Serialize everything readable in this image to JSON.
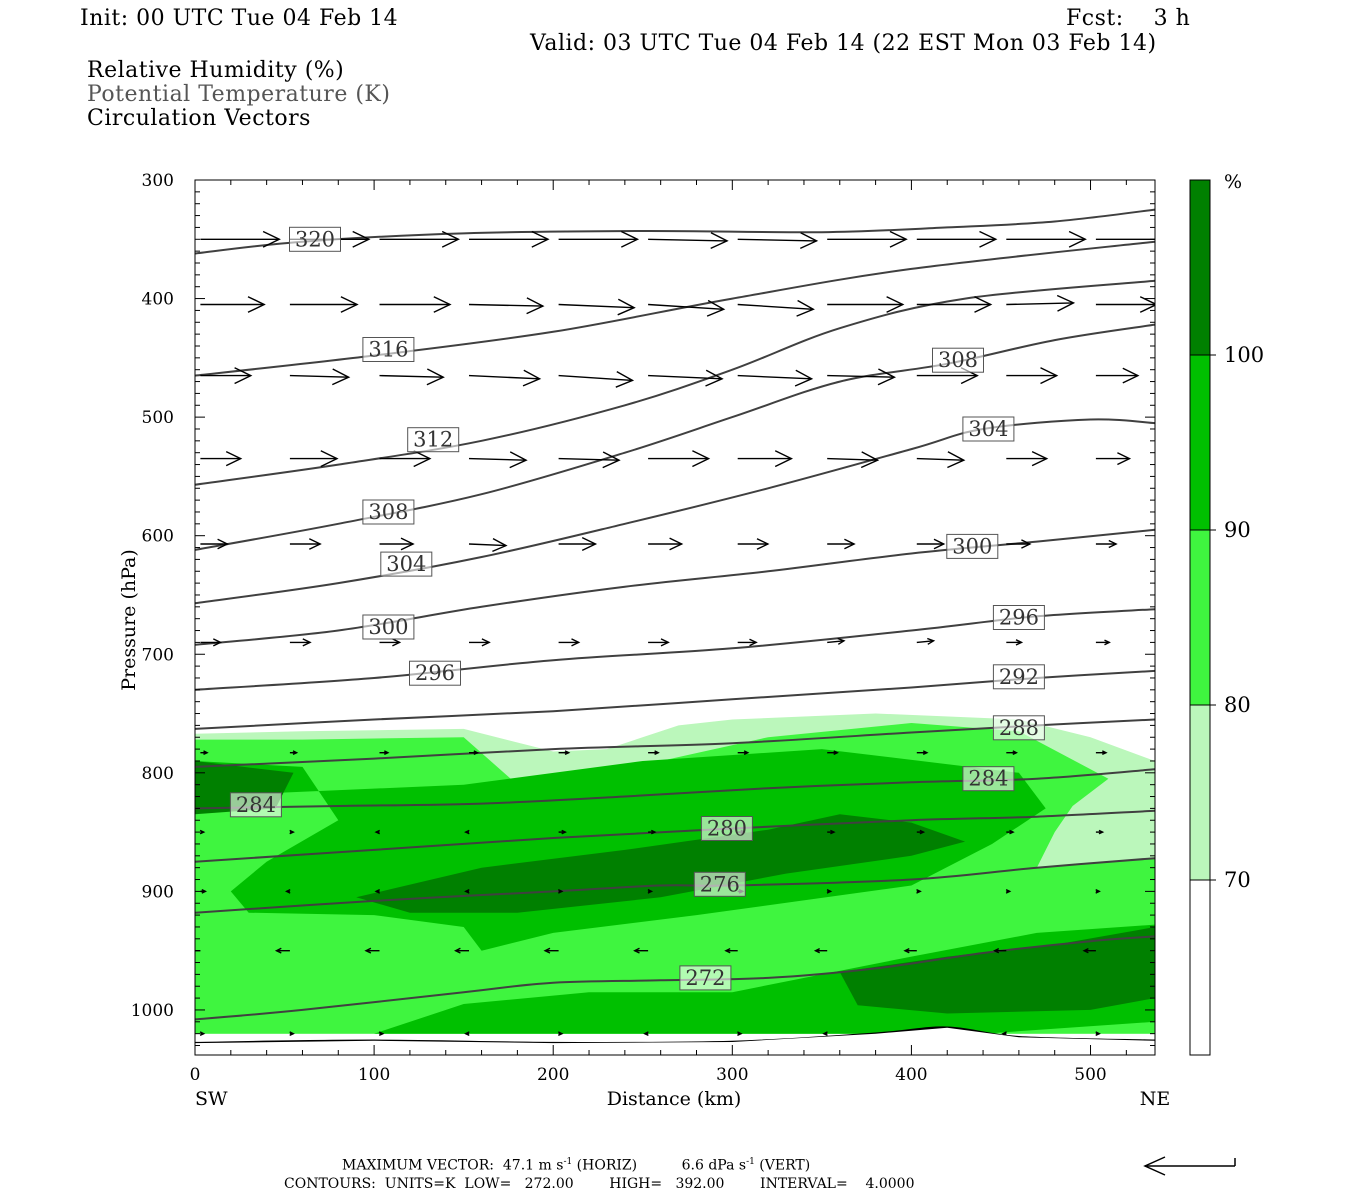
{
  "header": {
    "init": "Init: 00 UTC Tue 04 Feb 14",
    "fcst": "Fcst:    3 h",
    "valid": "Valid: 03 UTC Tue 04 Feb 14 (22 EST Mon 03 Feb 14)",
    "field1": "Relative Humidity (%)",
    "field2": "Potential Temperature (K)",
    "field3": "Circulation Vectors"
  },
  "footer": {
    "max_vector_label": "MAXIMUM VECTOR:",
    "max_horiz_value": "47.1",
    "max_horiz_units": "m s",
    "max_horiz_tag": "(HORIZ)",
    "max_vert_value": "6.6",
    "max_vert_units": "dPa s",
    "max_vert_tag": "(VERT)",
    "exponent": "-1",
    "contours": "CONTOURS:  UNITS=K  LOW=   272.00        HIGH=   392.00        INTERVAL=    4.0000"
  },
  "colors": {
    "rh70": "#bbf7bb",
    "rh80": "#3ff53f",
    "rh90": "#00c000",
    "rh100": "#008000",
    "theta": "#404040",
    "vector": "#000000"
  },
  "chart_data": {
    "type": "cross-section",
    "xlabel": "Distance (km)",
    "ylabel": "Pressure (hPa)",
    "x_end_labels": [
      "SW",
      "NE"
    ],
    "xlim": [
      0,
      536
    ],
    "ylim": [
      1038,
      300
    ],
    "xticks": [
      0,
      100,
      200,
      300,
      400,
      500
    ],
    "yticks": [
      300,
      400,
      500,
      600,
      700,
      800,
      900,
      1000
    ],
    "colorbar": {
      "unit": "%",
      "levels": [
        70,
        80,
        90,
        100
      ]
    },
    "theta_contours": [
      {
        "label": "320",
        "lx": 67,
        "lp": 350,
        "pts": [
          [
            0,
            362
          ],
          [
            60,
            352
          ],
          [
            150,
            345
          ],
          [
            250,
            343
          ],
          [
            350,
            344
          ],
          [
            420,
            340
          ],
          [
            480,
            335
          ],
          [
            536,
            325
          ]
        ]
      },
      {
        "label": "316",
        "lx": 108,
        "lp": 443,
        "pts": [
          [
            0,
            465
          ],
          [
            100,
            448
          ],
          [
            200,
            428
          ],
          [
            300,
            400
          ],
          [
            400,
            375
          ],
          [
            536,
            352
          ]
        ]
      },
      {
        "label": "312",
        "lx": 133,
        "lp": 519,
        "pts": [
          [
            0,
            557
          ],
          [
            80,
            540
          ],
          [
            160,
            520
          ],
          [
            240,
            490
          ],
          [
            300,
            460
          ],
          [
            360,
            425
          ],
          [
            430,
            400
          ],
          [
            536,
            385
          ]
        ]
      },
      {
        "label": "308",
        "lx": 108,
        "lp": 580,
        "lx2": 426,
        "lp2": 452,
        "pts": [
          [
            0,
            612
          ],
          [
            80,
            590
          ],
          [
            160,
            565
          ],
          [
            240,
            530
          ],
          [
            300,
            500
          ],
          [
            360,
            470
          ],
          [
            420,
            455
          ],
          [
            480,
            435
          ],
          [
            536,
            422
          ]
        ]
      },
      {
        "label": "304",
        "lx": 118,
        "lp": 624,
        "lx2": 443,
        "lp2": 510,
        "pts": [
          [
            0,
            657
          ],
          [
            80,
            640
          ],
          [
            160,
            618
          ],
          [
            240,
            590
          ],
          [
            320,
            560
          ],
          [
            400,
            527
          ],
          [
            440,
            510
          ],
          [
            500,
            502
          ],
          [
            536,
            505
          ]
        ]
      },
      {
        "label": "300",
        "lx": 108,
        "lp": 677,
        "lx2": 434,
        "lp2": 609,
        "pts": [
          [
            0,
            692
          ],
          [
            80,
            680
          ],
          [
            160,
            660
          ],
          [
            240,
            643
          ],
          [
            320,
            630
          ],
          [
            400,
            615
          ],
          [
            470,
            605
          ],
          [
            536,
            595
          ]
        ]
      },
      {
        "label": "296",
        "lx": 134,
        "lp": 716,
        "lx2": 460,
        "lp2": 669,
        "pts": [
          [
            0,
            730
          ],
          [
            100,
            720
          ],
          [
            200,
            705
          ],
          [
            300,
            695
          ],
          [
            400,
            680
          ],
          [
            470,
            668
          ],
          [
            536,
            662
          ]
        ]
      },
      {
        "label": "292",
        "lx": 460,
        "lp": 719,
        "pts": [
          [
            0,
            763
          ],
          [
            100,
            755
          ],
          [
            200,
            748
          ],
          [
            300,
            738
          ],
          [
            400,
            728
          ],
          [
            470,
            720
          ],
          [
            536,
            714
          ]
        ]
      },
      {
        "label": "288",
        "lx": 460,
        "lp": 762,
        "pts": [
          [
            0,
            795
          ],
          [
            100,
            788
          ],
          [
            200,
            780
          ],
          [
            300,
            775
          ],
          [
            400,
            766
          ],
          [
            470,
            760
          ],
          [
            536,
            755
          ]
        ]
      },
      {
        "label": "284",
        "lx": 34,
        "lp": 827,
        "lx2": 443,
        "lp2": 805,
        "pts": [
          [
            0,
            830
          ],
          [
            80,
            828
          ],
          [
            160,
            826
          ],
          [
            240,
            820
          ],
          [
            320,
            813
          ],
          [
            400,
            808
          ],
          [
            470,
            805
          ],
          [
            536,
            797
          ]
        ]
      },
      {
        "label": "280",
        "lx": 297,
        "lp": 847,
        "pts": [
          [
            0,
            875
          ],
          [
            100,
            865
          ],
          [
            200,
            855
          ],
          [
            300,
            847
          ],
          [
            400,
            840
          ],
          [
            470,
            837
          ],
          [
            536,
            832
          ]
        ]
      },
      {
        "label": "276",
        "lx": 293,
        "lp": 894,
        "pts": [
          [
            0,
            918
          ],
          [
            100,
            908
          ],
          [
            200,
            900
          ],
          [
            260,
            895
          ],
          [
            300,
            895
          ],
          [
            400,
            890
          ],
          [
            470,
            880
          ],
          [
            536,
            872
          ]
        ]
      },
      {
        "label": "272",
        "lx": 285,
        "lp": 973,
        "pts": [
          [
            0,
            1008
          ],
          [
            60,
            1000
          ],
          [
            150,
            985
          ],
          [
            200,
            977
          ],
          [
            260,
            975
          ],
          [
            320,
            973
          ],
          [
            380,
            965
          ],
          [
            440,
            952
          ],
          [
            500,
            942
          ],
          [
            536,
            938
          ]
        ]
      }
    ],
    "rh_regions": [
      {
        "level": 70,
        "pts": [
          [
            0,
            767
          ],
          [
            60,
            765
          ],
          [
            150,
            763
          ],
          [
            200,
            782
          ],
          [
            230,
            780
          ],
          [
            270,
            760
          ],
          [
            300,
            755
          ],
          [
            380,
            750
          ],
          [
            460,
            755
          ],
          [
            500,
            770
          ],
          [
            536,
            790
          ],
          [
            536,
            1020
          ],
          [
            0,
            1020
          ]
        ]
      },
      {
        "level": 80,
        "pts": [
          [
            0,
            772
          ],
          [
            60,
            772
          ],
          [
            150,
            770
          ],
          [
            180,
            810
          ],
          [
            260,
            790
          ],
          [
            320,
            770
          ],
          [
            400,
            758
          ],
          [
            460,
            765
          ],
          [
            510,
            805
          ],
          [
            490,
            828
          ],
          [
            480,
            850
          ],
          [
            470,
            880
          ],
          [
            536,
            872
          ],
          [
            536,
            1020
          ],
          [
            0,
            1020
          ]
        ]
      },
      {
        "level": 90,
        "pts": [
          [
            0,
            790
          ],
          [
            60,
            795
          ],
          [
            80,
            840
          ],
          [
            40,
            875
          ],
          [
            20,
            900
          ],
          [
            30,
            918
          ],
          [
            100,
            920
          ],
          [
            150,
            930
          ],
          [
            160,
            950
          ],
          [
            200,
            935
          ],
          [
            280,
            920
          ],
          [
            400,
            895
          ],
          [
            445,
            860
          ],
          [
            475,
            830
          ],
          [
            460,
            800
          ],
          [
            350,
            780
          ],
          [
            250,
            790
          ],
          [
            150,
            810
          ],
          [
            0,
            820
          ]
        ]
      },
      {
        "level": 90,
        "pts": [
          [
            100,
            1020
          ],
          [
            150,
            995
          ],
          [
            220,
            985
          ],
          [
            300,
            985
          ],
          [
            400,
            955
          ],
          [
            470,
            935
          ],
          [
            536,
            928
          ],
          [
            536,
            1010
          ],
          [
            440,
            1020
          ],
          [
            300,
            1020
          ]
        ]
      },
      {
        "level": 100,
        "pts": [
          [
            0,
            790
          ],
          [
            55,
            800
          ],
          [
            45,
            830
          ],
          [
            0,
            835
          ]
        ]
      },
      {
        "level": 100,
        "pts": [
          [
            90,
            905
          ],
          [
            160,
            880
          ],
          [
            240,
            865
          ],
          [
            320,
            848
          ],
          [
            360,
            835
          ],
          [
            400,
            842
          ],
          [
            430,
            858
          ],
          [
            400,
            870
          ],
          [
            330,
            885
          ],
          [
            260,
            905
          ],
          [
            180,
            918
          ],
          [
            120,
            918
          ]
        ]
      },
      {
        "level": 100,
        "pts": [
          [
            360,
            968
          ],
          [
            420,
            955
          ],
          [
            480,
            945
          ],
          [
            536,
            930
          ],
          [
            536,
            990
          ],
          [
            500,
            1000
          ],
          [
            420,
            1003
          ],
          [
            370,
            996
          ]
        ]
      }
    ],
    "circulation_vectors": [
      {
        "p": 350,
        "u": [
          47,
          47,
          47,
          47,
          47,
          47,
          47,
          47,
          47,
          47,
          47
        ],
        "w": [
          0,
          0,
          0,
          0,
          0,
          1,
          1,
          0,
          0,
          0,
          0
        ]
      },
      {
        "p": 405,
        "u": [
          38,
          40,
          42,
          44,
          45,
          45,
          45,
          45,
          44,
          40,
          36
        ],
        "w": [
          0,
          0,
          0,
          1,
          2,
          3,
          3,
          0,
          0,
          -1,
          0
        ]
      },
      {
        "p": 465,
        "u": [
          30,
          35,
          38,
          42,
          44,
          44,
          44,
          40,
          36,
          30,
          25
        ],
        "w": [
          0,
          1,
          1,
          2,
          3,
          2,
          2,
          1,
          0,
          0,
          0
        ]
      },
      {
        "p": 535,
        "u": [
          24,
          28,
          30,
          34,
          36,
          36,
          32,
          30,
          28,
          24,
          20
        ],
        "w": [
          0,
          0,
          0,
          1,
          1,
          0,
          0,
          1,
          1,
          0,
          0
        ]
      },
      {
        "p": 607,
        "u": [
          16,
          18,
          20,
          22,
          22,
          20,
          18,
          16,
          16,
          14,
          12
        ],
        "w": [
          0,
          0,
          0,
          1,
          0,
          0,
          0,
          0,
          0,
          0,
          0
        ]
      },
      {
        "p": 690,
        "u": [
          12,
          12,
          12,
          12,
          12,
          12,
          11,
          10,
          10,
          9,
          8
        ],
        "w": [
          0,
          0,
          0,
          0,
          0,
          0,
          0,
          -1,
          -1,
          0,
          0
        ]
      },
      {
        "p": 783,
        "u": [
          4,
          4,
          5,
          5,
          6,
          6,
          6,
          6,
          6,
          6,
          6
        ],
        "w": [
          0,
          0,
          0,
          0,
          0,
          0,
          0,
          0,
          0,
          0,
          0
        ]
      },
      {
        "p": 850,
        "u": [
          2,
          2,
          -2,
          -2,
          4,
          4,
          4,
          4,
          4,
          4,
          4
        ],
        "w": [
          0,
          0,
          0,
          0,
          0,
          0,
          0,
          0,
          0,
          0,
          0
        ]
      },
      {
        "p": 900,
        "u": [
          3,
          -2,
          -2,
          -2,
          2,
          2,
          3,
          2,
          2,
          2,
          2
        ],
        "w": [
          0,
          0,
          0,
          0,
          0,
          0,
          0,
          0,
          0,
          0,
          0
        ]
      },
      {
        "p": 950,
        "u": [
          -8,
          -8,
          -8,
          -8,
          -8,
          -8,
          -7,
          -7,
          -7,
          -7,
          -7
        ],
        "w": [
          0,
          0,
          0,
          0,
          0,
          0,
          0,
          0,
          0,
          0,
          0
        ]
      },
      {
        "p": 1020,
        "u": [
          2,
          2,
          2,
          -2,
          2,
          -2,
          2,
          -2,
          2,
          -2,
          2
        ],
        "w": [
          0,
          0,
          0,
          0,
          0,
          0,
          0,
          0,
          0,
          0,
          0
        ]
      }
    ],
    "ground_profile": [
      [
        0,
        1028
      ],
      [
        100,
        1026
      ],
      [
        200,
        1028
      ],
      [
        300,
        1027
      ],
      [
        380,
        1020
      ],
      [
        420,
        1015
      ],
      [
        460,
        1023
      ],
      [
        536,
        1026
      ]
    ]
  }
}
